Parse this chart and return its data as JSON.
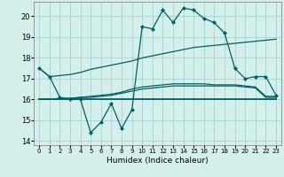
{
  "xlabel": "Humidex (Indice chaleur)",
  "background_color": "#d4f0ec",
  "grid_color": "#a0cccc",
  "line_color": "#006060",
  "ylim": [
    13.8,
    20.7
  ],
  "xlim": [
    -0.5,
    23.5
  ],
  "yticks": [
    14,
    15,
    16,
    17,
    18,
    19,
    20
  ],
  "x_ticks": [
    0,
    1,
    2,
    3,
    4,
    5,
    6,
    7,
    8,
    9,
    10,
    11,
    12,
    13,
    14,
    15,
    16,
    17,
    18,
    19,
    20,
    21,
    22,
    23
  ],
  "series": {
    "line1_smooth": [
      17.5,
      17.1,
      17.15,
      17.2,
      17.3,
      17.45,
      17.55,
      17.65,
      17.75,
      17.85,
      18.0,
      18.1,
      18.2,
      18.3,
      18.4,
      18.5,
      18.55,
      18.6,
      18.65,
      18.7,
      18.75,
      18.8,
      18.85,
      18.9
    ],
    "line2_volatile": [
      17.5,
      17.1,
      16.1,
      16.0,
      16.0,
      14.4,
      14.9,
      15.8,
      14.6,
      15.5,
      19.5,
      19.4,
      20.3,
      19.7,
      20.4,
      20.3,
      19.9,
      19.7,
      19.2,
      17.5,
      17.0,
      17.1,
      17.1,
      16.2
    ],
    "line3_flat": [
      16.0,
      16.0,
      16.0,
      16.0,
      16.0,
      16.0,
      16.0,
      16.0,
      16.0,
      16.0,
      16.0,
      16.0,
      16.0,
      16.0,
      16.0,
      16.0,
      16.0,
      16.0,
      16.0,
      16.0,
      16.0,
      16.0,
      16.0,
      16.0
    ],
    "line4_rise": [
      16.0,
      16.0,
      16.05,
      16.05,
      16.1,
      16.1,
      16.15,
      16.2,
      16.3,
      16.4,
      16.5,
      16.55,
      16.6,
      16.65,
      16.65,
      16.65,
      16.65,
      16.65,
      16.65,
      16.65,
      16.6,
      16.55,
      16.1,
      16.1
    ],
    "line5_rise2": [
      16.0,
      16.0,
      16.05,
      16.05,
      16.1,
      16.15,
      16.2,
      16.25,
      16.35,
      16.5,
      16.6,
      16.65,
      16.7,
      16.75,
      16.75,
      16.75,
      16.75,
      16.7,
      16.7,
      16.7,
      16.65,
      16.6,
      16.15,
      16.15
    ]
  }
}
